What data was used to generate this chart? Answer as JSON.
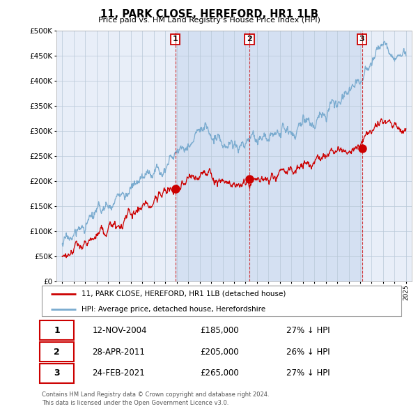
{
  "title": "11, PARK CLOSE, HEREFORD, HR1 1LB",
  "subtitle": "Price paid vs. HM Land Registry's House Price Index (HPI)",
  "legend_label_red": "11, PARK CLOSE, HEREFORD, HR1 1LB (detached house)",
  "legend_label_blue": "HPI: Average price, detached house, Herefordshire",
  "transactions": [
    {
      "num": 1,
      "date": "12-NOV-2004",
      "price": 185000,
      "hpi_pct": "27% ↓ HPI",
      "year": 2004.87
    },
    {
      "num": 2,
      "date": "28-APR-2011",
      "price": 205000,
      "hpi_pct": "26% ↓ HPI",
      "year": 2011.33
    },
    {
      "num": 3,
      "date": "24-FEB-2021",
      "price": 265000,
      "hpi_pct": "27% ↓ HPI",
      "year": 2021.16
    }
  ],
  "footer": "Contains HM Land Registry data © Crown copyright and database right 2024.\nThis data is licensed under the Open Government Licence v3.0.",
  "ylim": [
    0,
    500000
  ],
  "yticks": [
    0,
    50000,
    100000,
    150000,
    200000,
    250000,
    300000,
    350000,
    400000,
    450000,
    500000
  ],
  "plot_bg": "#e8eef8",
  "grid_color": "#b8c8d8",
  "red_color": "#cc0000",
  "blue_color": "#7aabcf",
  "shade_color": "#c8d8ee",
  "xmin": 1995,
  "xmax": 2025
}
